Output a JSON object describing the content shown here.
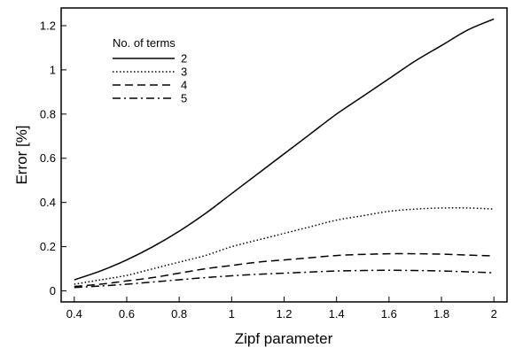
{
  "chart_data": {
    "type": "line",
    "title": "",
    "xlabel": "Zipf parameter",
    "ylabel": "Error [%]",
    "xlim": [
      0.35,
      2.05
    ],
    "ylim": [
      -0.05,
      1.28
    ],
    "xticks": [
      0.4,
      0.6,
      0.8,
      1,
      1.2,
      1.4,
      1.6,
      1.8,
      2
    ],
    "xtick_labels": [
      "0.4",
      "0.6",
      "0.8",
      "1",
      "1.2",
      "1.4",
      "1.6",
      "1.8",
      "2"
    ],
    "yticks": [
      0,
      0.2,
      0.4,
      0.6,
      0.8,
      1,
      1.2
    ],
    "ytick_labels": [
      "0",
      "0.2",
      "0.4",
      "0.6",
      "0.8",
      "1",
      "1.2"
    ],
    "grid": false,
    "legend": {
      "title": "No. of terms",
      "placement": "top-left"
    },
    "x": [
      0.4,
      0.5,
      0.6,
      0.7,
      0.8,
      0.9,
      1.0,
      1.1,
      1.2,
      1.3,
      1.4,
      1.5,
      1.6,
      1.7,
      1.8,
      1.9,
      2.0
    ],
    "series": [
      {
        "name": "2",
        "dash": "solid",
        "values": [
          0.05,
          0.09,
          0.14,
          0.2,
          0.27,
          0.35,
          0.44,
          0.53,
          0.62,
          0.71,
          0.8,
          0.88,
          0.96,
          1.04,
          1.11,
          1.18,
          1.23
        ]
      },
      {
        "name": "3",
        "dash": "dotted",
        "values": [
          0.03,
          0.05,
          0.07,
          0.1,
          0.13,
          0.16,
          0.2,
          0.23,
          0.26,
          0.29,
          0.32,
          0.34,
          0.36,
          0.37,
          0.375,
          0.375,
          0.37
        ]
      },
      {
        "name": "4",
        "dash": "dashed",
        "values": [
          0.02,
          0.03,
          0.045,
          0.06,
          0.08,
          0.1,
          0.115,
          0.13,
          0.14,
          0.15,
          0.16,
          0.165,
          0.168,
          0.168,
          0.166,
          0.162,
          0.158
        ]
      },
      {
        "name": "5",
        "dash": "dashdot",
        "values": [
          0.015,
          0.022,
          0.03,
          0.04,
          0.05,
          0.06,
          0.068,
          0.075,
          0.08,
          0.085,
          0.09,
          0.092,
          0.093,
          0.092,
          0.09,
          0.086,
          0.082
        ]
      }
    ]
  },
  "colors": {
    "line": "#000000",
    "background": "#ffffff"
  }
}
